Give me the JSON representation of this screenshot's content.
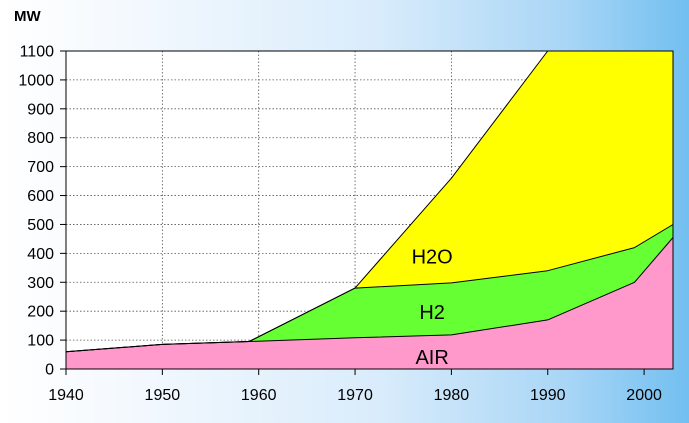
{
  "chart_data": {
    "type": "area",
    "stacked": true,
    "title": "",
    "ylabel": "MW",
    "xlabel": "",
    "xlim": [
      1940,
      2003
    ],
    "ylim": [
      0,
      1100
    ],
    "grid": true,
    "x_ticks": [
      1940,
      1950,
      1960,
      1970,
      1980,
      1990,
      2000
    ],
    "y_ticks": [
      0,
      100,
      200,
      300,
      400,
      500,
      600,
      700,
      800,
      900,
      1000,
      1100
    ],
    "series": [
      {
        "name": "AIR",
        "color": "#ff99cc",
        "points": [
          [
            1940,
            60
          ],
          [
            1950,
            85
          ],
          [
            1959,
            95
          ],
          [
            1970,
            108
          ],
          [
            1980,
            118
          ],
          [
            1990,
            170
          ],
          [
            1999,
            300
          ],
          [
            2003,
            455
          ]
        ]
      },
      {
        "name": "H2",
        "color": "#66ff33",
        "points": [
          [
            1940,
            60
          ],
          [
            1950,
            85
          ],
          [
            1959,
            95
          ],
          [
            1970,
            280
          ],
          [
            1980,
            298
          ],
          [
            1990,
            340
          ],
          [
            1999,
            420
          ],
          [
            2003,
            500
          ]
        ]
      },
      {
        "name": "H2O",
        "color": "#ffff00",
        "points": [
          [
            1940,
            60
          ],
          [
            1950,
            85
          ],
          [
            1959,
            95
          ],
          [
            1970,
            280
          ],
          [
            1980,
            660
          ],
          [
            1990,
            1100
          ],
          [
            2003,
            1100
          ]
        ]
      }
    ],
    "series_labels": [
      {
        "name": "H2O",
        "text": "H2O",
        "x": 1978,
        "y": 390
      },
      {
        "name": "H2",
        "text": "H2",
        "x": 1978,
        "y": 197
      },
      {
        "name": "AIR",
        "text": "AIR",
        "x": 1978,
        "y": 42
      }
    ]
  }
}
